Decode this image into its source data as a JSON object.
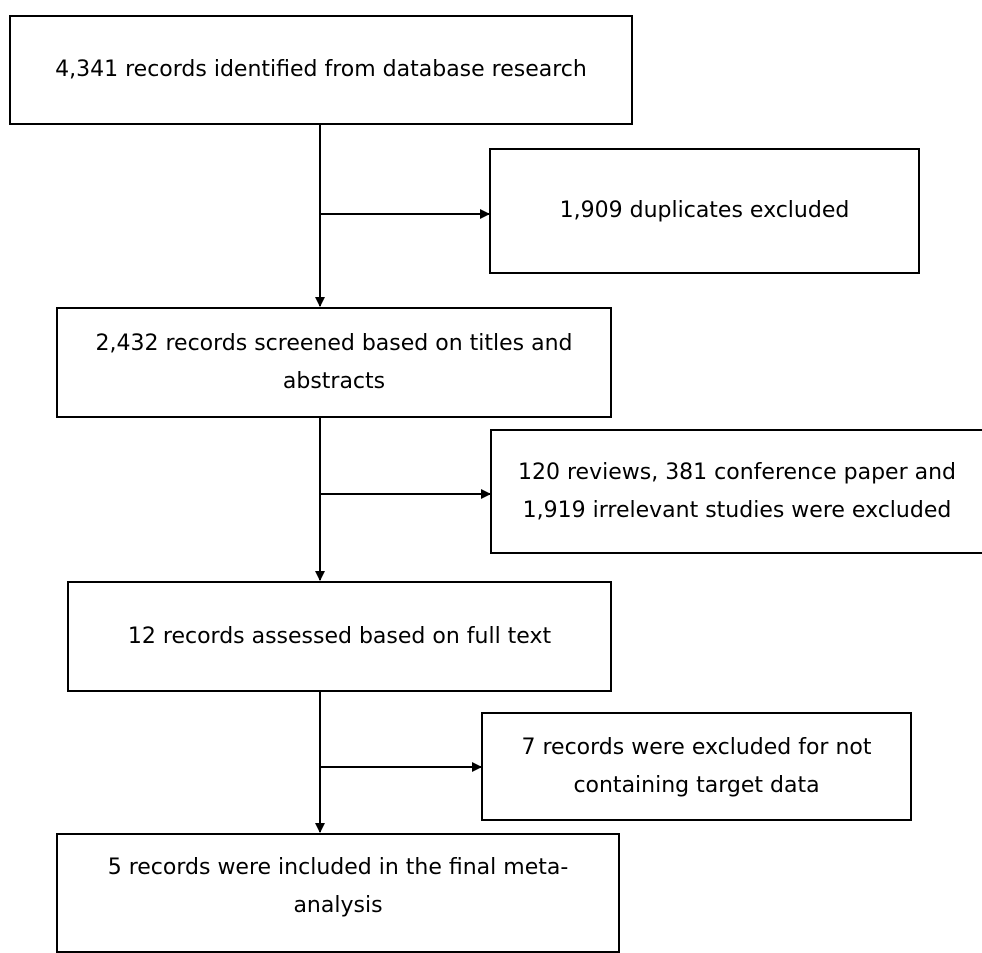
{
  "flow": {
    "steps": [
      "4,341 records identified from database research",
      "2,432 records screened based on titles and abstracts",
      "12 records assessed based on full text",
      "5 records were included in the final meta-analysis"
    ],
    "exclusions": [
      "1,909 duplicates excluded",
      "120 reviews, 381 conference paper and 1,919 irrelevant studies were excluded",
      "7 records were excluded for not containing target data"
    ]
  },
  "colors": {
    "stroke": "#000000",
    "background": "#ffffff"
  }
}
